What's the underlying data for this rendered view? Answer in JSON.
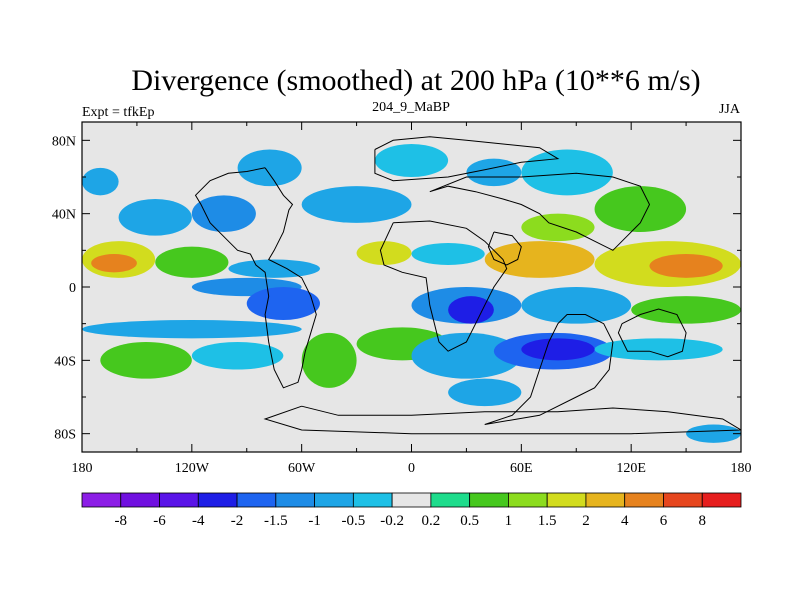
{
  "chart_data": {
    "type": "heatmap",
    "title": "Divergence (smoothed) at 200 hPa (10**6 m/s)",
    "subtitle_left": "Expt = tfkEp",
    "subtitle_center": "204_9_MaBP",
    "subtitle_right": "JJA",
    "x_ticks": [
      "180",
      "120W",
      "60W",
      "0",
      "60E",
      "120E",
      "180"
    ],
    "x_tick_values": [
      -180,
      -120,
      -60,
      0,
      60,
      120,
      180
    ],
    "y_ticks": [
      "80N",
      "40N",
      "0",
      "40S",
      "80S"
    ],
    "y_tick_values": [
      80,
      40,
      0,
      -40,
      -80
    ],
    "xlim": [
      -180,
      180
    ],
    "ylim": [
      -90,
      90
    ],
    "colorbar_labels": [
      "-8",
      "-6",
      "-4",
      "-2",
      "-1.5",
      "-1",
      "-0.5",
      "-0.2",
      "0.2",
      "0.5",
      "1",
      "1.5",
      "2",
      "4",
      "6",
      "8"
    ],
    "colorbar_colors": [
      "#8c1ee6",
      "#7010e0",
      "#5a14e8",
      "#1e1ee6",
      "#1e64f0",
      "#1e8ce6",
      "#1ea5e6",
      "#1ec0e6",
      "#e6e6e6",
      "#1edc8c",
      "#46c81e",
      "#8cdc1e",
      "#d2dc1e",
      "#e6b41e",
      "#e6821e",
      "#e6461e",
      "#e61e1e"
    ],
    "regions": [
      {
        "lon": [
          -180,
          180
        ],
        "lat": [
          78,
          90
        ],
        "value": 0
      },
      {
        "lon": [
          -180,
          -160
        ],
        "lat": [
          50,
          65
        ],
        "value": -1
      },
      {
        "lon": [
          -160,
          -120
        ],
        "lat": [
          28,
          48
        ],
        "value": -1
      },
      {
        "lon": [
          -120,
          -85
        ],
        "lat": [
          30,
          50
        ],
        "value": -1.5
      },
      {
        "lon": [
          -95,
          -60
        ],
        "lat": [
          55,
          75
        ],
        "value": -1
      },
      {
        "lon": [
          -20,
          20
        ],
        "lat": [
          60,
          78
        ],
        "value": -0.5
      },
      {
        "lon": [
          30,
          60
        ],
        "lat": [
          55,
          70
        ],
        "value": -1
      },
      {
        "lon": [
          -60,
          0
        ],
        "lat": [
          35,
          55
        ],
        "value": -1
      },
      {
        "lon": [
          60,
          110
        ],
        "lat": [
          50,
          75
        ],
        "value": -0.5
      },
      {
        "lon": [
          100,
          150
        ],
        "lat": [
          30,
          55
        ],
        "value": 0.5
      },
      {
        "lon": [
          60,
          100
        ],
        "lat": [
          25,
          40
        ],
        "value": 1
      },
      {
        "lon": [
          -180,
          -140
        ],
        "lat": [
          5,
          25
        ],
        "value": 1.5
      },
      {
        "lon": [
          -175,
          -150
        ],
        "lat": [
          8,
          18
        ],
        "value": 4
      },
      {
        "lon": [
          -140,
          -100
        ],
        "lat": [
          5,
          22
        ],
        "value": 0.5
      },
      {
        "lon": [
          -100,
          -50
        ],
        "lat": [
          5,
          15
        ],
        "value": -1
      },
      {
        "lon": [
          -30,
          0
        ],
        "lat": [
          12,
          25
        ],
        "value": 1.5
      },
      {
        "lon": [
          0,
          40
        ],
        "lat": [
          12,
          24
        ],
        "value": -0.5
      },
      {
        "lon": [
          40,
          100
        ],
        "lat": [
          5,
          25
        ],
        "value": 2
      },
      {
        "lon": [
          100,
          180
        ],
        "lat": [
          0,
          25
        ],
        "value": 1.5
      },
      {
        "lon": [
          130,
          170
        ],
        "lat": [
          5,
          18
        ],
        "value": 4
      },
      {
        "lon": [
          -120,
          -60
        ],
        "lat": [
          -5,
          5
        ],
        "value": -1.5
      },
      {
        "lon": [
          -90,
          -50
        ],
        "lat": [
          -18,
          0
        ],
        "value": -2
      },
      {
        "lon": [
          0,
          60
        ],
        "lat": [
          -20,
          0
        ],
        "value": -1.5
      },
      {
        "lon": [
          20,
          45
        ],
        "lat": [
          -20,
          -5
        ],
        "value": -4
      },
      {
        "lon": [
          60,
          120
        ],
        "lat": [
          -20,
          0
        ],
        "value": -1
      },
      {
        "lon": [
          120,
          180
        ],
        "lat": [
          -20,
          -5
        ],
        "value": 0.5
      },
      {
        "lon": [
          -180,
          -60
        ],
        "lat": [
          -28,
          -18
        ],
        "value": -1
      },
      {
        "lon": [
          -170,
          -120
        ],
        "lat": [
          -50,
          -30
        ],
        "value": 0.5
      },
      {
        "lon": [
          -120,
          -70
        ],
        "lat": [
          -45,
          -30
        ],
        "value": -0.5
      },
      {
        "lon": [
          -60,
          -30
        ],
        "lat": [
          -55,
          -25
        ],
        "value": 0.5
      },
      {
        "lon": [
          -30,
          20
        ],
        "lat": [
          -40,
          -22
        ],
        "value": 0.5
      },
      {
        "lon": [
          0,
          60
        ],
        "lat": [
          -50,
          -25
        ],
        "value": -1
      },
      {
        "lon": [
          45,
          110
        ],
        "lat": [
          -45,
          -25
        ],
        "value": -2
      },
      {
        "lon": [
          60,
          100
        ],
        "lat": [
          -40,
          -28
        ],
        "value": -4
      },
      {
        "lon": [
          100,
          170
        ],
        "lat": [
          -40,
          -28
        ],
        "value": -0.5
      },
      {
        "lon": [
          -180,
          -150
        ],
        "lat": [
          -65,
          -55
        ],
        "value": -0.2
      },
      {
        "lon": [
          20,
          60
        ],
        "lat": [
          -65,
          -50
        ],
        "value": -1
      },
      {
        "lon": [
          150,
          180
        ],
        "lat": [
          -85,
          -75
        ],
        "value": -1
      }
    ]
  }
}
